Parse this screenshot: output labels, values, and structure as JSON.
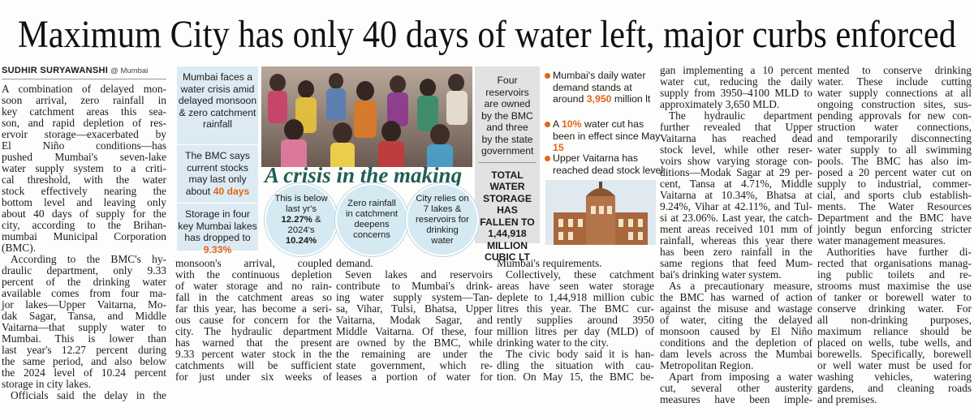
{
  "headline": "Maximum City has only 40 days of water left, major curbs enforced",
  "byline": {
    "author": "SUDHIR SURYAWANSHI",
    "location": "@ Mumbai"
  },
  "graphic": {
    "title": "A crisis in the making",
    "left_panel": [
      {
        "parts": [
          {
            "text": "Mumbai faces a water crisis amid delayed monsoon & zero catchment rainfall"
          }
        ]
      },
      {
        "parts": [
          {
            "text": "The BMC says current stocks may last only about "
          },
          {
            "text": "40 days",
            "highlight": true
          }
        ]
      },
      {
        "parts": [
          {
            "text": "Storage in four key Mumbai lakes has dropped to "
          },
          {
            "text": "9.33%",
            "highlight": true
          }
        ]
      }
    ],
    "circles": [
      {
        "parts": [
          {
            "text": "This is below last yr's "
          },
          {
            "text": "12.27%",
            "bold": true
          },
          {
            "text": " & 2024's "
          },
          {
            "text": "10.24%",
            "bold": true
          }
        ]
      },
      {
        "parts": [
          {
            "text": "Zero rainfall in catchment deepens concerns"
          }
        ]
      },
      {
        "parts": [
          {
            "text": "City relies on 7 lakes & reservoirs for drinking water"
          }
        ]
      }
    ],
    "ownership": "Four reservoirs are owned by the BMC and three by the state government",
    "total_storage": "TOTAL WATER STORAGE HAS FALLEN TO 1,44,918 MILLION CUBIC LT",
    "bullets": [
      {
        "parts": [
          {
            "text": "Mumbai's daily water demand stands at around "
          },
          {
            "text": "3,950",
            "highlight": true
          },
          {
            "text": " million lt"
          }
        ]
      },
      {
        "parts": [
          {
            "text": "A "
          },
          {
            "text": "10%",
            "highlight": true
          },
          {
            "text": " water cut has been in effect since May "
          },
          {
            "text": "15",
            "highlight": true
          }
        ]
      },
      {
        "parts": [
          {
            "text": "Upper Vaitarna has reached dead stock level"
          }
        ]
      }
    ]
  },
  "columns": [
    {
      "paragraphs": [
        {
          "indent": false,
          "lines": [
            "A combination of delayed mon-",
            "soon arrival, zero rainfall in",
            "key catchment areas this sea-",
            "son, and rapid depletion of res-",
            "ervoir storage—exacerbated by",
            "El Niño conditions—has",
            "pushed Mumbai's seven-lake",
            "water supply system to a criti-",
            "cal threshold, with the water",
            "stock effectively nearing the",
            "bottom level and leaving only",
            "about 40 days of supply for the",
            "city, according to the Brihan-",
            "mumbai Municipal Corporation",
            "(BMC)."
          ]
        },
        {
          "indent": true,
          "lines": [
            "According to the BMC's hy-",
            "draulic department, only 9.33",
            "percent of the drinking water",
            "available comes from four ma-",
            "jor lakes—Upper Vaitarna, Mo-",
            "dak Sagar, Tansa, and Middle",
            "Vaitarna—that supply water to",
            "Mumbai. This is lower than",
            "last year's 12.27 percent during",
            "the same period, and also below",
            "the 2024 level of 10.24 percent",
            "storage in city lakes."
          ]
        },
        {
          "indent": true,
          "lines": [
            "Officials said the delay in the"
          ]
        }
      ]
    },
    {
      "paragraphs": [
        {
          "indent": false,
          "lines": [
            "monsoon's arrival, coupled",
            "with the continuous depletion",
            "of water storage and no rain-",
            "fall in the catchment areas so",
            "far this year, has become a seri-",
            "ous cause for concern for the",
            "city. The hydraulic department",
            "has warned that the present",
            "9.33 percent water stock in the",
            "catchments will be sufficient",
            "for just under six weeks of"
          ]
        }
      ]
    },
    {
      "paragraphs": [
        {
          "indent": false,
          "lines": [
            "demand."
          ]
        },
        {
          "indent": true,
          "lines": [
            "Seven lakes and reservoirs",
            "contribute to Mumbai's drink-",
            "ing water supply system—Tan-",
            "sa, Vihar, Tulsi, Bhatsa, Upper",
            "Vaitarna, Modak Sagar, and",
            "Middle Vaitarna. Of these, four",
            "are owned by the BMC, while",
            "the remaining are under the",
            "state government, which re-",
            "leases a portion of water for"
          ]
        }
      ]
    },
    {
      "paragraphs": [
        {
          "indent": false,
          "lines": [
            "Mumbai's requirements."
          ]
        },
        {
          "indent": true,
          "lines": [
            "Collectively, these catchment",
            "areas have seen water storage",
            "deplete to 1,44,918 million cubic",
            "litres this year. The BMC cur-",
            "rently supplies around 3950",
            "million litres per day (MLD) of",
            "drinking water to the city."
          ]
        },
        {
          "indent": true,
          "lines": [
            "The civic body said it is han-",
            "dling the situation with cau-",
            "tion. On May 15, the BMC be-"
          ]
        }
      ]
    },
    {
      "paragraphs": [
        {
          "indent": false,
          "lines": [
            "gan implementing a 10 percent",
            "water cut, reducing the daily",
            "supply from 3950–4100 MLD to",
            "approximately 3,650 MLD."
          ]
        },
        {
          "indent": true,
          "lines": [
            "The hydraulic department",
            "further revealed that Upper",
            "Vaitarna has reached dead",
            "stock level, while other reser-",
            "voirs show varying storage con-",
            "ditions—Modak Sagar at 29 per-",
            "cent, Tansa at 4.71%, Middle",
            "Vaitarna at 10.34%, Bhatsa at",
            "9.24%, Vihar at 42.11%, and Tul-",
            "si at 23.06%. Last year, the catch-",
            "ment areas received 101 mm of",
            "rainfall, whereas this year there",
            "has been zero rainfall in the",
            "same regions that feed Mum-",
            "bai's drinking water system."
          ]
        },
        {
          "indent": true,
          "lines": [
            "As a precautionary measure,",
            "the BMC has warned of action",
            "against the misuse and wastage",
            "of water, citing the delayed",
            "monsoon caused by El Niño",
            "conditions and the depletion of",
            "dam levels across the Mumbai",
            "Metropolitan Region."
          ]
        },
        {
          "indent": true,
          "lines": [
            "Apart from imposing a water",
            "cut, several other austerity",
            "measures have been imple-"
          ]
        }
      ]
    },
    {
      "paragraphs": [
        {
          "indent": false,
          "lines": [
            "mented to conserve drinking",
            "water. These include cutting",
            "water supply connections at all",
            "ongoing construction sites, sus-",
            "pending approvals for new con-",
            "struction water connections,",
            "and temporarily disconnecting",
            "water supply to all swimming",
            "pools. The BMC has also im-",
            "posed a 20 percent water cut on",
            "supply to industrial, commer-",
            "cial, and sports club establish-",
            "ments. The Water Resources",
            "Department and the BMC have",
            "jointly begun enforcing stricter",
            "water management measures."
          ]
        },
        {
          "indent": true,
          "lines": [
            "Authorities have further di-",
            "rected that organisations manag-",
            "ing public toilets and re-",
            "strooms must maximise the use",
            "of tanker or borewell water to",
            "conserve drinking water. For",
            "all non-drinking purposes,",
            "maximum reliance should be",
            "placed on wells, tube wells, and",
            "borewells. Specifically, borewell",
            "or well water must be used for",
            "washing vehicles, watering",
            "gardens, and cleaning roads",
            "and premises."
          ]
        }
      ]
    }
  ]
}
